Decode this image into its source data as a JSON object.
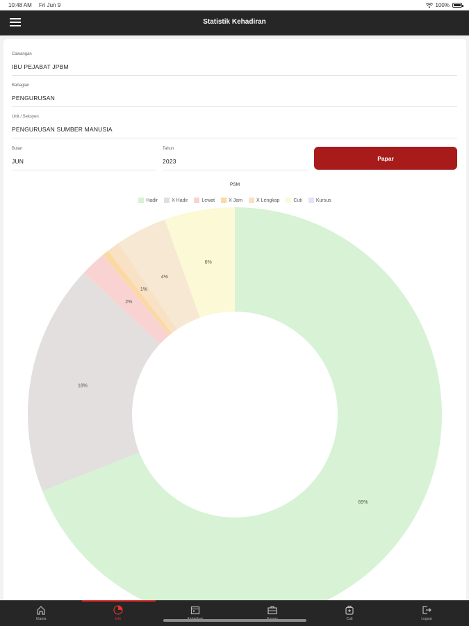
{
  "status_bar": {
    "time": "10:48 AM",
    "date": "Fri Jun 9",
    "battery": "100%"
  },
  "app_bar": {
    "title": "Statistik Kehadiran",
    "menu_icon": "hamburger-icon"
  },
  "form": {
    "cawangan": {
      "label": "Cawangan",
      "value": "IBU PEJABAT JPBM"
    },
    "bahagian": {
      "label": "Bahagian",
      "value": "PENGURUSAN"
    },
    "unit": {
      "label": "Unit / Seksyen",
      "value": "PENGURUSAN SUMBER MANUSIA"
    },
    "bulan": {
      "label": "Bulan",
      "value": "JUN"
    },
    "tahun": {
      "label": "Tahun",
      "value": "2023"
    },
    "papar_label": "Papar"
  },
  "chart_data": {
    "type": "pie",
    "subtype": "doughnut",
    "title": "PSM",
    "legend_position": "top",
    "series": [
      {
        "name": "Hadir",
        "value": 69,
        "color": "#d7f2d5",
        "label": "69%"
      },
      {
        "name": "X Hadir",
        "value": 18,
        "color": "#e2dfde",
        "label": "18%"
      },
      {
        "name": "Lewat",
        "value": 2,
        "color": "#f9d3d1",
        "label": "2%"
      },
      {
        "name": "X Jam",
        "value": 0.5,
        "color": "#fbd9a5",
        "label": ""
      },
      {
        "name": "X Lengkap",
        "value": 1,
        "color": "#f8e1c4",
        "label": "1%"
      },
      {
        "name": "Cuti",
        "value": 4,
        "color": "#f6e8d2",
        "label": "4%"
      },
      {
        "name": "Kursus",
        "value": 5.5,
        "color": "#fbf9d6",
        "label": "6%"
      }
    ],
    "legend": [
      {
        "name": "Hadir",
        "color": "#d7f2d5"
      },
      {
        "name": "X Hadir",
        "color": "#e2dfde"
      },
      {
        "name": "Lewat",
        "color": "#f9d3d1"
      },
      {
        "name": "X Jam",
        "color": "#fbd9a5"
      },
      {
        "name": "X Lengkap",
        "color": "#f8e1c4"
      },
      {
        "name": "Cuti",
        "color": "#fbf9d6"
      },
      {
        "name": "Kursus",
        "color": "#e1e3f8"
      }
    ]
  },
  "bottom_nav": {
    "active_index": 1,
    "accent_color": "#e23232",
    "items": [
      {
        "label": "Utama",
        "icon": "home-icon"
      },
      {
        "label": "Info",
        "icon": "pie-chart-icon"
      },
      {
        "label": "Kehadiran",
        "icon": "calendar-icon"
      },
      {
        "label": "Kursus",
        "icon": "briefcase-icon"
      },
      {
        "label": "Cuti",
        "icon": "luggage-icon"
      },
      {
        "label": "Logout",
        "icon": "logout-icon"
      }
    ]
  }
}
